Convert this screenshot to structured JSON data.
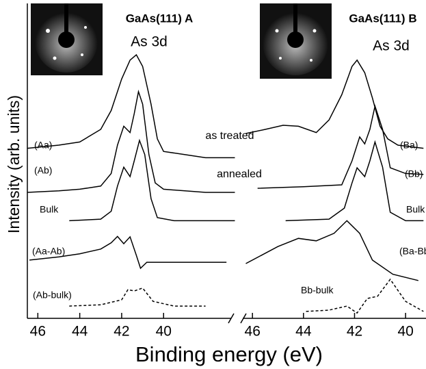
{
  "chart_data": [
    {
      "type": "line",
      "title": "GaAs(111) A",
      "subtitle": "As 3d",
      "xlabel": "Binding energy (eV)",
      "ylabel": "Intensity (arb. units)",
      "annotations": [
        "as treated",
        "annealed"
      ],
      "xlim": [
        46.5,
        36.55
      ],
      "xticks": [
        46,
        44,
        42,
        40
      ],
      "ylim": [
        0,
        100
      ],
      "series": [
        {
          "name": "(Aa)",
          "color": "#000000",
          "linestyle": "solid",
          "x": [
            46.5,
            45,
            44,
            43,
            42.5,
            42,
            41.6,
            41.3,
            41,
            40.6,
            40.3,
            40,
            39,
            38,
            36.6
          ],
          "values": [
            54,
            55,
            56,
            60,
            66,
            76,
            82,
            83.7,
            80,
            68,
            57,
            53,
            52,
            51,
            51
          ]
        },
        {
          "name": "(Ab)",
          "color": "#000000",
          "linestyle": "solid",
          "x": [
            46.5,
            45,
            44,
            43,
            42.5,
            42.2,
            41.9,
            41.6,
            41.4,
            41.2,
            41,
            40.7,
            40.4,
            40,
            38,
            36.6
          ],
          "values": [
            40,
            40.5,
            41,
            42,
            46,
            55,
            61,
            59,
            65,
            72,
            68,
            52,
            43,
            41,
            40,
            40
          ]
        },
        {
          "name": "Bulk",
          "color": "#000000",
          "linestyle": "solid",
          "x": [
            44.5,
            43,
            42.5,
            42.2,
            41.9,
            41.6,
            41.4,
            41.15,
            40.9,
            40.6,
            40.3,
            39.5,
            38,
            36.6
          ],
          "values": [
            31,
            31.5,
            34,
            42,
            48,
            45,
            50,
            56.5,
            52,
            38,
            32,
            31,
            31,
            31
          ]
        },
        {
          "name": "(Aa-Ab)",
          "color": "#000000",
          "linestyle": "solid",
          "x": [
            46.4,
            45,
            44,
            43,
            42.5,
            42.2,
            41.9,
            41.6,
            41.3,
            41.1,
            40.8,
            39,
            37
          ],
          "values": [
            18.5,
            19.5,
            20.5,
            22,
            24,
            26,
            23.7,
            25.9,
            20,
            15.9,
            17.8,
            17.8,
            17.8
          ]
        },
        {
          "name": "(Ab-bulk)",
          "color": "#000000",
          "linestyle": "dashed",
          "x": [
            44.5,
            43,
            42,
            41.7,
            41.4,
            41,
            40.5,
            39.5,
            38
          ],
          "values": [
            3.9,
            4.3,
            5.9,
            9.1,
            8.7,
            9.6,
            5.4,
            3.9,
            3.9
          ]
        }
      ]
    },
    {
      "type": "line",
      "title": "GaAs(111) B",
      "subtitle": "As 3d",
      "xlim": [
        46.3,
        39.2
      ],
      "xticks": [
        46,
        44,
        42,
        40
      ],
      "ylim": [
        0,
        100
      ],
      "series": [
        {
          "name": "(Ba)",
          "color": "#000000",
          "linestyle": "solid",
          "x": [
            46.26,
            45.5,
            44.8,
            44.2,
            43.5,
            43,
            42.5,
            42.1,
            41.9,
            41.6,
            41.3,
            41,
            40.7,
            40.3,
            39.3
          ],
          "values": [
            58.7,
            60,
            61.3,
            61,
            59,
            63,
            71,
            80,
            82,
            78,
            70,
            61,
            57,
            55,
            54
          ]
        },
        {
          "name": "(Bb)",
          "color": "#000000",
          "linestyle": "solid",
          "x": [
            45.8,
            44,
            42.5,
            42.1,
            41.8,
            41.6,
            41.4,
            41.2,
            40.9,
            40.6,
            40,
            39.3
          ],
          "values": [
            41.3,
            41.8,
            42.4,
            50,
            57.6,
            55.4,
            60,
            67.4,
            60,
            47.8,
            46,
            45.7
          ]
        },
        {
          "name": "Bulk",
          "color": "#000000",
          "linestyle": "solid",
          "x": [
            44.7,
            43,
            42.4,
            42.1,
            41.9,
            41.6,
            41.4,
            41.2,
            40.9,
            40.6,
            40,
            39.3
          ],
          "values": [
            31,
            31.5,
            35,
            43,
            47.8,
            45,
            50,
            56,
            48,
            33.7,
            31,
            31
          ]
        },
        {
          "name": "(Ba-Bb)",
          "color": "#000000",
          "linestyle": "solid",
          "x": [
            46.26,
            45,
            44.2,
            43.5,
            42.8,
            42.3,
            41.8,
            41.3,
            40.5,
            39.5
          ],
          "values": [
            17.4,
            22.8,
            25.4,
            24.6,
            27,
            31,
            27,
            18.5,
            14,
            12
          ]
        },
        {
          "name": "Bb-bulk",
          "color": "#000000",
          "linestyle": "dashed",
          "x": [
            43.9,
            43,
            42.3,
            41.9,
            41.5,
            41.1,
            40.6,
            40,
            39.3
          ],
          "values": [
            2.2,
            2.6,
            3.9,
            1.7,
            6.3,
            7,
            12.4,
            5.4,
            2.2
          ]
        }
      ]
    }
  ]
}
